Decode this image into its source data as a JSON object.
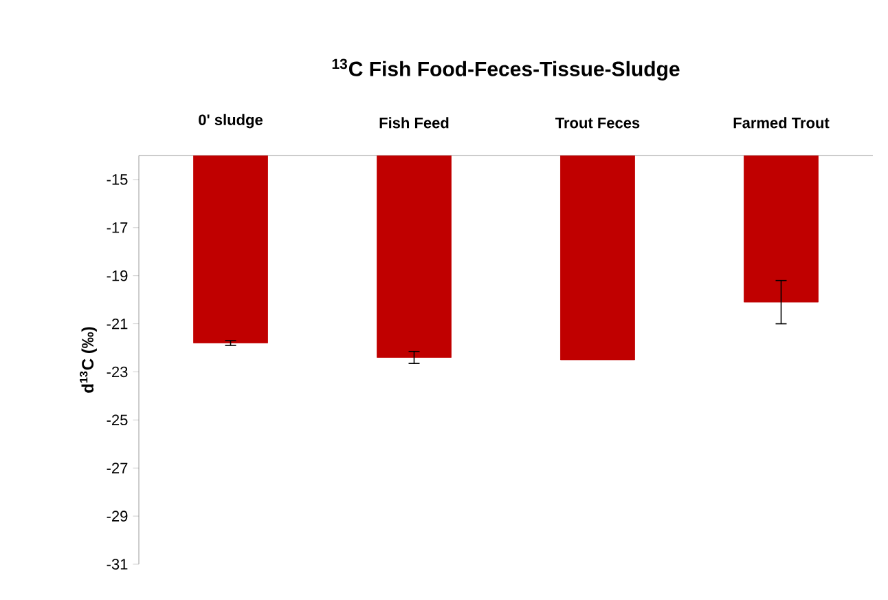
{
  "chart_data": {
    "type": "bar",
    "title": "$^{13}$C  Fish Food-Feces-Tissue-Sludge",
    "ylabel": "d$^{13}$C  (‰)",
    "categories": [
      "0' sludge",
      "Fish Feed",
      "Trout Feces",
      "Farmed Trout"
    ],
    "values": [
      -21.8,
      -22.4,
      -22.5,
      -20.1
    ],
    "errors": [
      0.1,
      0.25,
      null,
      0.9
    ],
    "color": "#c00000",
    "ylim": [
      -31,
      -14
    ],
    "yticks": [
      -31,
      -29,
      -27,
      -25,
      -23,
      -21,
      -19,
      -17,
      -15
    ]
  }
}
